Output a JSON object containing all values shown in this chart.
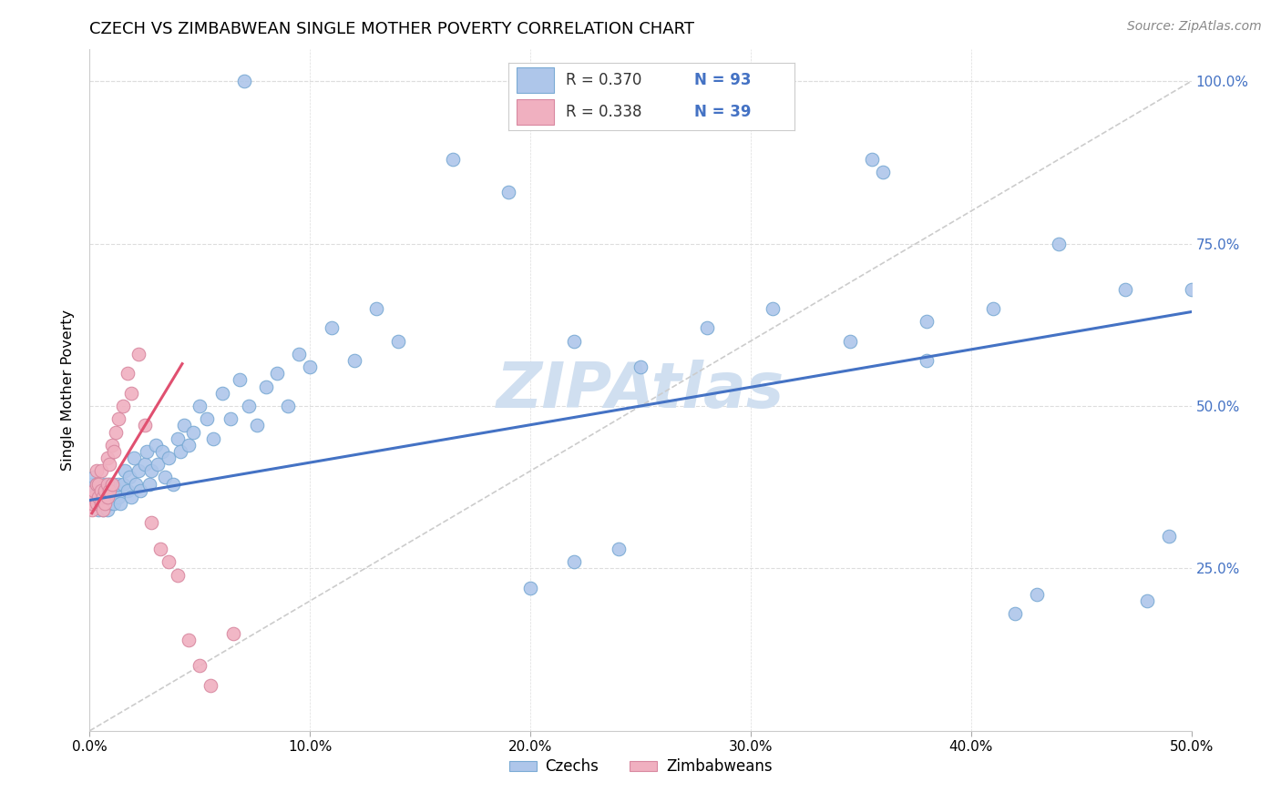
{
  "title": "CZECH VS ZIMBABWEAN SINGLE MOTHER POVERTY CORRELATION CHART",
  "source": "Source: ZipAtlas.com",
  "ylabel": "Single Mother Poverty",
  "xlim": [
    0.0,
    0.5
  ],
  "ylim": [
    0.0,
    1.05
  ],
  "xtick_vals": [
    0.0,
    0.1,
    0.2,
    0.3,
    0.4,
    0.5
  ],
  "xtick_labels": [
    "0.0%",
    "10.0%",
    "20.0%",
    "30.0%",
    "40.0%",
    "50.0%"
  ],
  "ytick_vals": [
    0.25,
    0.5,
    0.75,
    1.0
  ],
  "ytick_labels": [
    "25.0%",
    "50.0%",
    "75.0%",
    "100.0%"
  ],
  "czech_color": "#aec6ea",
  "czech_edge": "#7aaad4",
  "zimbabwe_color": "#f0b0c0",
  "zimbabwe_edge": "#d888a0",
  "czech_R": 0.37,
  "czech_N": 93,
  "zimbabwe_R": 0.338,
  "zimbabwe_N": 39,
  "trend_czech_color": "#4472c4",
  "trend_zimbabwe_color": "#e05070",
  "watermark": "ZIPAtlas",
  "watermark_color": "#d0dff0",
  "grid_color": "#dddddd",
  "ytick_color": "#4472c4",
  "diag_color": "#cccccc",
  "legend_R_color": "#333333",
  "legend_N_color": "#4472c4",
  "czech_trend_x0": 0.0,
  "czech_trend_x1": 0.5,
  "czech_trend_y0": 0.355,
  "czech_trend_y1": 0.645,
  "zim_trend_x0": 0.001,
  "zim_trend_x1": 0.042,
  "zim_trend_y0": 0.335,
  "zim_trend_y1": 0.565,
  "czech_pts_x": [
    0.001,
    0.001,
    0.002,
    0.002,
    0.003,
    0.003,
    0.004,
    0.004,
    0.004,
    0.005,
    0.005,
    0.005,
    0.006,
    0.006,
    0.007,
    0.007,
    0.007,
    0.008,
    0.008,
    0.009,
    0.009,
    0.01,
    0.01,
    0.011,
    0.011,
    0.012,
    0.013,
    0.013,
    0.014,
    0.015,
    0.016,
    0.017,
    0.018,
    0.019,
    0.02,
    0.021,
    0.022,
    0.023,
    0.025,
    0.026,
    0.027,
    0.028,
    0.03,
    0.031,
    0.033,
    0.034,
    0.036,
    0.038,
    0.04,
    0.041,
    0.043,
    0.045,
    0.047,
    0.05,
    0.053,
    0.056,
    0.06,
    0.064,
    0.068,
    0.072,
    0.076,
    0.08,
    0.085,
    0.09,
    0.095,
    0.1,
    0.11,
    0.12,
    0.13,
    0.14,
    0.07,
    0.165,
    0.19,
    0.22,
    0.25,
    0.28,
    0.31,
    0.345,
    0.38,
    0.41,
    0.44,
    0.47,
    0.5,
    0.49,
    0.48,
    0.43,
    0.42,
    0.36,
    0.355,
    0.38,
    0.2,
    0.22,
    0.24
  ],
  "czech_pts_y": [
    0.37,
    0.38,
    0.36,
    0.39,
    0.35,
    0.38,
    0.36,
    0.34,
    0.37,
    0.35,
    0.37,
    0.36,
    0.34,
    0.37,
    0.35,
    0.36,
    0.38,
    0.34,
    0.37,
    0.35,
    0.38,
    0.36,
    0.37,
    0.35,
    0.38,
    0.37,
    0.36,
    0.38,
    0.35,
    0.38,
    0.4,
    0.37,
    0.39,
    0.36,
    0.42,
    0.38,
    0.4,
    0.37,
    0.41,
    0.43,
    0.38,
    0.4,
    0.44,
    0.41,
    0.43,
    0.39,
    0.42,
    0.38,
    0.45,
    0.43,
    0.47,
    0.44,
    0.46,
    0.5,
    0.48,
    0.45,
    0.52,
    0.48,
    0.54,
    0.5,
    0.47,
    0.53,
    0.55,
    0.5,
    0.58,
    0.56,
    0.62,
    0.57,
    0.65,
    0.6,
    1.0,
    0.88,
    0.83,
    0.6,
    0.56,
    0.62,
    0.65,
    0.6,
    0.57,
    0.65,
    0.75,
    0.68,
    0.68,
    0.3,
    0.2,
    0.21,
    0.18,
    0.86,
    0.88,
    0.63,
    0.22,
    0.26,
    0.28
  ],
  "zim_pts_x": [
    0.001,
    0.001,
    0.002,
    0.002,
    0.003,
    0.003,
    0.003,
    0.004,
    0.004,
    0.005,
    0.005,
    0.005,
    0.006,
    0.006,
    0.007,
    0.007,
    0.008,
    0.008,
    0.008,
    0.009,
    0.009,
    0.01,
    0.01,
    0.011,
    0.012,
    0.013,
    0.015,
    0.017,
    0.019,
    0.022,
    0.025,
    0.028,
    0.032,
    0.036,
    0.04,
    0.045,
    0.05,
    0.055,
    0.065
  ],
  "zim_pts_y": [
    0.34,
    0.35,
    0.36,
    0.37,
    0.35,
    0.38,
    0.4,
    0.36,
    0.38,
    0.35,
    0.37,
    0.4,
    0.34,
    0.36,
    0.37,
    0.35,
    0.38,
    0.36,
    0.42,
    0.37,
    0.41,
    0.38,
    0.44,
    0.43,
    0.46,
    0.48,
    0.5,
    0.55,
    0.52,
    0.58,
    0.47,
    0.32,
    0.28,
    0.26,
    0.24,
    0.14,
    0.1,
    0.07,
    0.15
  ]
}
